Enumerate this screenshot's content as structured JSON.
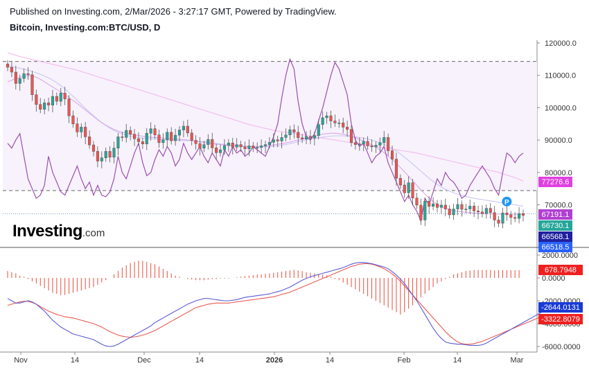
{
  "header": {
    "published": "Published on Investing.com, 2/Mar/2026 - 3:27:17 GMT, Powered by TradingView.",
    "symbol": "Bitcoin, Investing.com:BTC/USD, D"
  },
  "logo": {
    "main": "Investing",
    "suffix": ".com"
  },
  "colors": {
    "up": "#26a69a",
    "down": "#ef5350",
    "candle_outline": "#555555",
    "ma_light": "#f4b8f0",
    "ma_lavender": "#c9c6f5",
    "ma_mid": "#d9a8e8",
    "indicator": "#9c4fb0",
    "macd": "#5b5bd6",
    "signal": "#e85a50",
    "hist": "#e74c3c",
    "zone": "#f7f2fb"
  },
  "chart_data": [
    {
      "type": "candlestick",
      "title": "Bitcoin, Investing.com:BTC/USD, D",
      "x_labels": [
        "Nov",
        "14",
        "Dec",
        "14",
        "2026",
        "14",
        "Feb",
        "14",
        "Mar"
      ],
      "y_ticks": [
        "120000.0",
        "110000.0",
        "100000.0",
        "90000.0",
        "80000.0",
        "70000.0"
      ],
      "ylim": [
        58000,
        123000
      ],
      "start_date": "2025-10-29",
      "closes": [
        112500,
        111000,
        107500,
        109000,
        110500,
        110200,
        104000,
        101000,
        99500,
        101500,
        100800,
        103500,
        102000,
        104500,
        102700,
        97500,
        95000,
        92500,
        94000,
        91000,
        88500,
        86500,
        83500,
        84500,
        86500,
        84700,
        87500,
        91000,
        90800,
        93000,
        91800,
        90400,
        89500,
        88800,
        92100,
        93500,
        91600,
        89200,
        90100,
        92400,
        89800,
        91500,
        93100,
        94300,
        92200,
        89900,
        88900,
        87500,
        88600,
        90200,
        87600,
        86100,
        87000,
        88300,
        89100,
        87800,
        88600,
        87900,
        87300,
        88200,
        87500,
        87700,
        88200,
        88600,
        89300,
        90100,
        89700,
        90800,
        91600,
        93200,
        92400,
        90700,
        90300,
        91100,
        90600,
        91400,
        94800,
        96900,
        97500,
        95900,
        95300,
        95300,
        94000,
        93300,
        89200,
        88600,
        88800,
        89600,
        88200,
        87900,
        88400,
        89200,
        90800,
        86700,
        84100,
        78200,
        76100,
        73700,
        76800,
        72100,
        69900,
        65300,
        71100,
        69500,
        70300,
        69200,
        69900,
        68700,
        66900,
        68700,
        70100,
        68600,
        68700,
        69600,
        68100,
        67800,
        67300,
        68900,
        67600,
        65300,
        64300,
        67500,
        66900,
        66100,
        65800,
        67300,
        66730
      ],
      "ma_light": [
        117000,
        116600,
        116200,
        115800,
        115500,
        115200,
        114900,
        114600,
        114300,
        114000,
        113700,
        113400,
        113100,
        112800,
        112500,
        112200,
        111900,
        111600,
        111200,
        110800,
        110400,
        110000,
        109600,
        109200,
        108800,
        108400,
        108000,
        107600,
        107200,
        106800,
        106400,
        106000,
        105600,
        105200,
        104800,
        104400,
        104000,
        103600,
        103200,
        102800,
        102400,
        102000,
        101600,
        101200,
        100800,
        100400,
        100000,
        99600,
        99200,
        98800,
        98400,
        98000,
        97600,
        97200,
        96800,
        96400,
        96000,
        95600,
        95200,
        94800,
        94500,
        94200,
        93900,
        93600,
        93300,
        93000,
        92800,
        92600,
        92400,
        92200,
        92000,
        91800,
        91600,
        91400,
        91200,
        91000,
        90800,
        90600,
        90400,
        90200,
        90000,
        89800,
        89600,
        89400,
        89200,
        89000,
        88800,
        88600,
        88400,
        88200,
        88000,
        87800,
        87600,
        87400,
        87200,
        87000,
        86800,
        86600,
        86400,
        86200,
        86000,
        85700,
        85400,
        85100,
        84800,
        84500,
        84200,
        83900,
        83600,
        83300,
        83000,
        82700,
        82400,
        82100,
        81800,
        81500,
        81200,
        80900,
        80600,
        80300,
        80000,
        79600,
        79200,
        78800,
        78400,
        77900,
        77300
      ],
      "ma_lavender": [
        112800,
        112600,
        112400,
        112200,
        111900,
        111600,
        111200,
        110800,
        110300,
        109800,
        109200,
        108500,
        107700,
        106800,
        105800,
        104700,
        103500,
        102300,
        101000,
        99800,
        98600,
        97500,
        96400,
        95400,
        94500,
        93700,
        93000,
        92400,
        91900,
        91500,
        91200,
        91000,
        90800,
        90600,
        90500,
        90400,
        90300,
        90200,
        90100,
        90000,
        90000,
        89900,
        89900,
        89800,
        89800,
        89800,
        89700,
        89600,
        89500,
        89400,
        89200,
        89000,
        88800,
        88600,
        88500,
        88400,
        88300,
        88200,
        88100,
        88000,
        87900,
        87900,
        87900,
        87900,
        88000,
        88100,
        88200,
        88400,
        88600,
        88900,
        89200,
        89500,
        89800,
        90100,
        90300,
        90500,
        90700,
        90900,
        91100,
        91200,
        91300,
        91300,
        91300,
        91200,
        91100,
        91000,
        90800,
        90600,
        90300,
        90000,
        89600,
        89200,
        88700,
        88100,
        87400,
        86600,
        85700,
        84700,
        83700,
        82600,
        81500,
        80400,
        79300,
        78200,
        77200,
        76300,
        75500,
        74800,
        74200,
        73700,
        73300,
        72900,
        72600,
        72300,
        72000,
        71800,
        71600,
        71400,
        71200,
        71000,
        70800,
        70600,
        70400,
        70200,
        70000,
        69800,
        69600
      ],
      "ma_mid": [
        108000,
        108500,
        109000,
        109400,
        109700,
        109900,
        109800,
        109400,
        108800,
        108000,
        107200,
        106400,
        105600,
        104800,
        104000,
        103100,
        102200,
        101300,
        100300,
        99300,
        98300,
        97300,
        96300,
        95400,
        94600,
        93900,
        93300,
        92800,
        92400,
        92100,
        91800,
        91600,
        91400,
        91200,
        91000,
        90900,
        90800,
        90700,
        90600,
        90500,
        90400,
        90300,
        90200,
        90100,
        90000,
        89800,
        89600,
        89400,
        89200,
        89000,
        88800,
        88700,
        88600,
        88500,
        88400,
        88300,
        88200,
        88100,
        88000,
        88000,
        88000,
        88000,
        88100,
        88200,
        88300,
        88500,
        88700,
        88900,
        89100,
        89400,
        89700,
        90000,
        90300,
        90600,
        90900,
        91200,
        91500,
        91800,
        92000,
        92100,
        92100,
        92000,
        91800,
        91500,
        91100,
        90700,
        90200,
        89700,
        89100,
        88500,
        87800,
        87000,
        86100,
        85100,
        84000,
        82800,
        81500,
        80200,
        78800,
        77400,
        76000,
        74600,
        73300,
        72100,
        71000,
        70100,
        69400,
        68900,
        68500,
        68200,
        68000,
        67800,
        67700,
        67600,
        67500,
        67400,
        67300,
        67300,
        67200,
        67200,
        67100,
        67100,
        67100,
        67100,
        67100,
        67100,
        67100
      ],
      "indicator": [
        89000,
        87500,
        90000,
        92000,
        85000,
        78000,
        75000,
        72000,
        73000,
        76000,
        85000,
        80000,
        77000,
        74000,
        73000,
        76000,
        79000,
        82000,
        78000,
        75000,
        77000,
        73000,
        76000,
        73000,
        72500,
        74000,
        78000,
        85000,
        80000,
        78000,
        82000,
        86000,
        89000,
        83000,
        79000,
        80000,
        84000,
        87000,
        85000,
        88000,
        86000,
        82000,
        84000,
        89000,
        86000,
        84000,
        86000,
        88000,
        85000,
        83000,
        86000,
        84000,
        82000,
        87000,
        85000,
        88000,
        86000,
        87000,
        85000,
        86000,
        88000,
        87000,
        86000,
        85000,
        88000,
        91000,
        95000,
        103000,
        110000,
        115000,
        112000,
        102000,
        95000,
        91000,
        90000,
        92000,
        96000,
        100000,
        105000,
        110000,
        114000,
        112000,
        108000,
        104000,
        95000,
        90000,
        88000,
        89000,
        86000,
        83000,
        85000,
        86000,
        88000,
        83000,
        80000,
        77000,
        74000,
        71000,
        73000,
        70000,
        68000,
        65000,
        72000,
        70000,
        74000,
        78000,
        76000,
        80000,
        78000,
        77000,
        75000,
        72000,
        73000,
        76000,
        78000,
        80000,
        82000,
        80000,
        78000,
        75000,
        73000,
        80000,
        86000,
        85000,
        83000,
        85000,
        86000
      ],
      "price_labels": [
        {
          "value": "77276.6",
          "price": 77276.6,
          "color": "#e040e0"
        },
        {
          "value": "67191.1",
          "price": 67191.1,
          "color": "#b040d0"
        },
        {
          "value": "66730.1",
          "price": 66730.1,
          "color": "#26a69a"
        },
        {
          "value": "66568.1",
          "price": 66568.1,
          "color": "#2020a0"
        },
        {
          "value": "66518.5",
          "price": 66518.5,
          "color": "#2962ff"
        }
      ],
      "dashed_levels": [
        114300,
        74400
      ],
      "marker": {
        "label": "P",
        "index": 122,
        "price": 71000
      }
    },
    {
      "type": "macd",
      "y_ticks": [
        "2000.0000",
        "0.0000",
        "-2000.0000",
        "-4000.0000",
        "-6000.0000"
      ],
      "ylim": [
        -7000,
        2700
      ],
      "macd": [
        -1800,
        -2000,
        -2200,
        -2200,
        -2100,
        -2000,
        -2100,
        -2300,
        -2600,
        -2900,
        -3300,
        -3700,
        -4000,
        -4300,
        -4500,
        -4700,
        -4900,
        -5000,
        -5100,
        -5200,
        -5300,
        -5400,
        -5600,
        -5800,
        -5950,
        -6000,
        -5950,
        -5800,
        -5600,
        -5400,
        -5200,
        -5000,
        -4800,
        -4600,
        -4400,
        -4200,
        -3900,
        -3700,
        -3500,
        -3300,
        -3100,
        -2900,
        -2700,
        -2500,
        -2300,
        -2150,
        -2000,
        -1900,
        -1800,
        -1800,
        -1850,
        -1900,
        -1950,
        -2000,
        -2000,
        -1950,
        -1900,
        -1800,
        -1700,
        -1650,
        -1600,
        -1550,
        -1500,
        -1450,
        -1400,
        -1300,
        -1200,
        -1100,
        -950,
        -800,
        -600,
        -400,
        -200,
        -50,
        100,
        200,
        300,
        400,
        500,
        600,
        700,
        800,
        900,
        1050,
        1200,
        1300,
        1350,
        1350,
        1300,
        1250,
        1150,
        1050,
        950,
        800,
        550,
        250,
        -100,
        -500,
        -1000,
        -1500,
        -2000,
        -2600,
        -3200,
        -3800,
        -4400,
        -4900,
        -5300,
        -5600,
        -5700,
        -5750,
        -5800,
        -5800,
        -5850,
        -5900,
        -5900,
        -5900,
        -5850,
        -5700,
        -5500,
        -5300,
        -5100,
        -4900,
        -4700,
        -4500,
        -4300,
        -4100,
        -3900,
        -3700,
        -3500,
        -3300,
        -3100,
        -2900,
        -2700,
        -2644
      ],
      "signal": [
        -2400,
        -2300,
        -2200,
        -2100,
        -2050,
        -2050,
        -2150,
        -2300,
        -2500,
        -2700,
        -2900,
        -3050,
        -3200,
        -3300,
        -3400,
        -3450,
        -3500,
        -3600,
        -3700,
        -3800,
        -3900,
        -4000,
        -4150,
        -4300,
        -4500,
        -4700,
        -4850,
        -5000,
        -5100,
        -5150,
        -5200,
        -5150,
        -5100,
        -5000,
        -4900,
        -4750,
        -4600,
        -4400,
        -4200,
        -4000,
        -3800,
        -3600,
        -3400,
        -3200,
        -3000,
        -2800,
        -2600,
        -2500,
        -2400,
        -2300,
        -2250,
        -2200,
        -2200,
        -2200,
        -2200,
        -2150,
        -2100,
        -2050,
        -2000,
        -1950,
        -1900,
        -1850,
        -1800,
        -1750,
        -1700,
        -1650,
        -1550,
        -1450,
        -1350,
        -1250,
        -1100,
        -950,
        -800,
        -650,
        -500,
        -350,
        -200,
        -50,
        100,
        250,
        400,
        550,
        700,
        850,
        1000,
        1100,
        1200,
        1250,
        1250,
        1200,
        1100,
        950,
        800,
        600,
        350,
        50,
        -300,
        -700,
        -1100,
        -1500,
        -1900,
        -2300,
        -2700,
        -3100,
        -3500,
        -3900,
        -4300,
        -4700,
        -5050,
        -5350,
        -5600,
        -5750,
        -5800,
        -5800,
        -5750,
        -5650,
        -5550,
        -5400,
        -5250,
        -5100,
        -4950,
        -4800,
        -4650,
        -4500,
        -4350,
        -4200,
        -4050,
        -3900,
        -3750,
        -3600,
        -3450,
        -3323
      ],
      "histogram": [
        600,
        500,
        400,
        200,
        100,
        -100,
        -300,
        -500,
        -700,
        -900,
        -1100,
        -1300,
        -1400,
        -1500,
        -1500,
        -1400,
        -1300,
        -1200,
        -1100,
        -1000,
        -900,
        -800,
        -600,
        -400,
        -200,
        0,
        300,
        600,
        900,
        1100,
        1300,
        1400,
        1500,
        1500,
        1400,
        1300,
        1200,
        1000,
        800,
        600,
        400,
        200,
        100,
        0,
        -100,
        -150,
        -200,
        -200,
        -200,
        -150,
        -100,
        -100,
        -50,
        -50,
        -50,
        0,
        50,
        100,
        150,
        200,
        250,
        300,
        300,
        350,
        400,
        450,
        500,
        550,
        600,
        650,
        700,
        650,
        600,
        500,
        450,
        400,
        350,
        300,
        200,
        100,
        -100,
        -200,
        -400,
        -600,
        -800,
        -1000,
        -1200,
        -1400,
        -1600,
        -1800,
        -2000,
        -2200,
        -2400,
        -2600,
        -2800,
        -3000,
        -3200,
        -3000,
        -2700,
        -2400,
        -2000,
        -1700,
        -1400,
        -1100,
        -800,
        -500,
        -300,
        -100,
        100,
        300,
        400,
        500,
        600,
        650,
        700,
        700,
        700,
        700,
        700,
        650,
        680,
        680,
        680,
        680,
        680,
        679
      ],
      "value_labels": [
        {
          "value": "678.7948",
          "level": 678.79,
          "color": "#ef2020"
        },
        {
          "value": "-2644.0131",
          "level": -2644.01,
          "color": "#1a3ad6"
        },
        {
          "value": "-3322.8079",
          "level": -3322.81,
          "color": "#ef2020"
        }
      ]
    }
  ]
}
